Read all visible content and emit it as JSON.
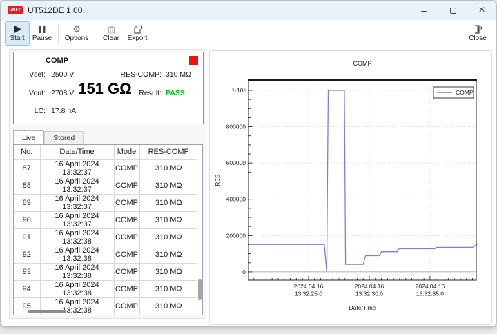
{
  "window": {
    "logo_text": "UNI-T",
    "title": "UT512DE 1.00",
    "controls": {
      "minimize": "–",
      "close": "×"
    }
  },
  "toolbar": {
    "buttons": [
      {
        "label": "Start",
        "active": true
      },
      {
        "label": "Pause",
        "active": false
      },
      {
        "label": "Options",
        "active": false
      },
      {
        "label": "Clear",
        "active": false
      },
      {
        "label": "Export",
        "active": false
      }
    ],
    "close_label": "Close"
  },
  "measurement": {
    "mode_title": "COMP",
    "vset_label": "Vset:",
    "vset_value": "2500 V",
    "vout_label": "Vout:",
    "vout_value": "2708 V",
    "lc_label": "LC:",
    "lc_value": "17.8 nA",
    "reading": "151 GΩ",
    "res_comp_label": "RES-COMP:",
    "res_comp_value": "310 MΩ",
    "result_label": "Result:",
    "result_value": "PASS",
    "result_color": "#00c318",
    "indicator_color": "#ed1111"
  },
  "tabs": {
    "live": "Live",
    "stored": "Stored"
  },
  "table": {
    "columns": [
      "No.",
      "Date/Time",
      "Mode",
      "RES-COMP"
    ],
    "rows": [
      [
        "87",
        "16 April 2024 13:32:37",
        "COMP",
        "310 MΩ"
      ],
      [
        "88",
        "16 April 2024 13:32:37",
        "COMP",
        "310 MΩ"
      ],
      [
        "89",
        "16 April 2024 13:32:37",
        "COMP",
        "310 MΩ"
      ],
      [
        "90",
        "16 April 2024 13:32:37",
        "COMP",
        "310 MΩ"
      ],
      [
        "91",
        "16 April 2024 13:32:38",
        "COMP",
        "310 MΩ"
      ],
      [
        "92",
        "16 April 2024 13:32:38",
        "COMP",
        "310 MΩ"
      ],
      [
        "93",
        "16 April 2024 13:32:38",
        "COMP",
        "310 MΩ"
      ],
      [
        "94",
        "16 April 2024 13:32:38",
        "COMP",
        "310 MΩ"
      ],
      [
        "95",
        "16 April 2024 13:32:38",
        "COMP",
        "310 MΩ"
      ]
    ]
  },
  "chart_data": {
    "type": "line",
    "title": "COMP",
    "xlabel": "Date/Time",
    "ylabel": "RES",
    "legend_position": "top-right",
    "grid": "dotted",
    "x_unit": "seconds after 2024.04.16 13:32:00",
    "xlim": [
      20.06,
      38.81
    ],
    "ylim": [
      -46000,
      1057000
    ],
    "y_major_ticks": [
      0,
      200000,
      400000,
      600000,
      800000,
      1000000
    ],
    "y_tick_labels": [
      "0",
      "200000",
      "400000",
      "600000",
      "800000",
      "1·10⁶"
    ],
    "y_minor_step": 50000,
    "x_major_ticks": [
      25,
      30,
      35
    ],
    "x_tick_labels": [
      [
        "2024.04.16",
        "13:32:25.0"
      ],
      [
        "2024.04.16",
        "13:32:30.0"
      ],
      [
        "2024.04.16",
        "13:32:35.0"
      ]
    ],
    "x_minor_step": 0.5,
    "series": [
      {
        "name": "COMP",
        "color": "#7b7de2",
        "points": [
          [
            20.1,
            151000
          ],
          [
            26.3,
            151000
          ],
          [
            26.5,
            0
          ],
          [
            26.62,
            1000000
          ],
          [
            27.95,
            1000000
          ],
          [
            28.05,
            41000
          ],
          [
            29.5,
            41000
          ],
          [
            29.7,
            89000
          ],
          [
            30.85,
            89000
          ],
          [
            31.0,
            111000
          ],
          [
            32.3,
            111000
          ],
          [
            32.45,
            127000
          ],
          [
            35.4,
            127000
          ],
          [
            35.55,
            135000
          ],
          [
            38.5,
            135000
          ],
          [
            38.9,
            153000
          ]
        ]
      }
    ]
  }
}
